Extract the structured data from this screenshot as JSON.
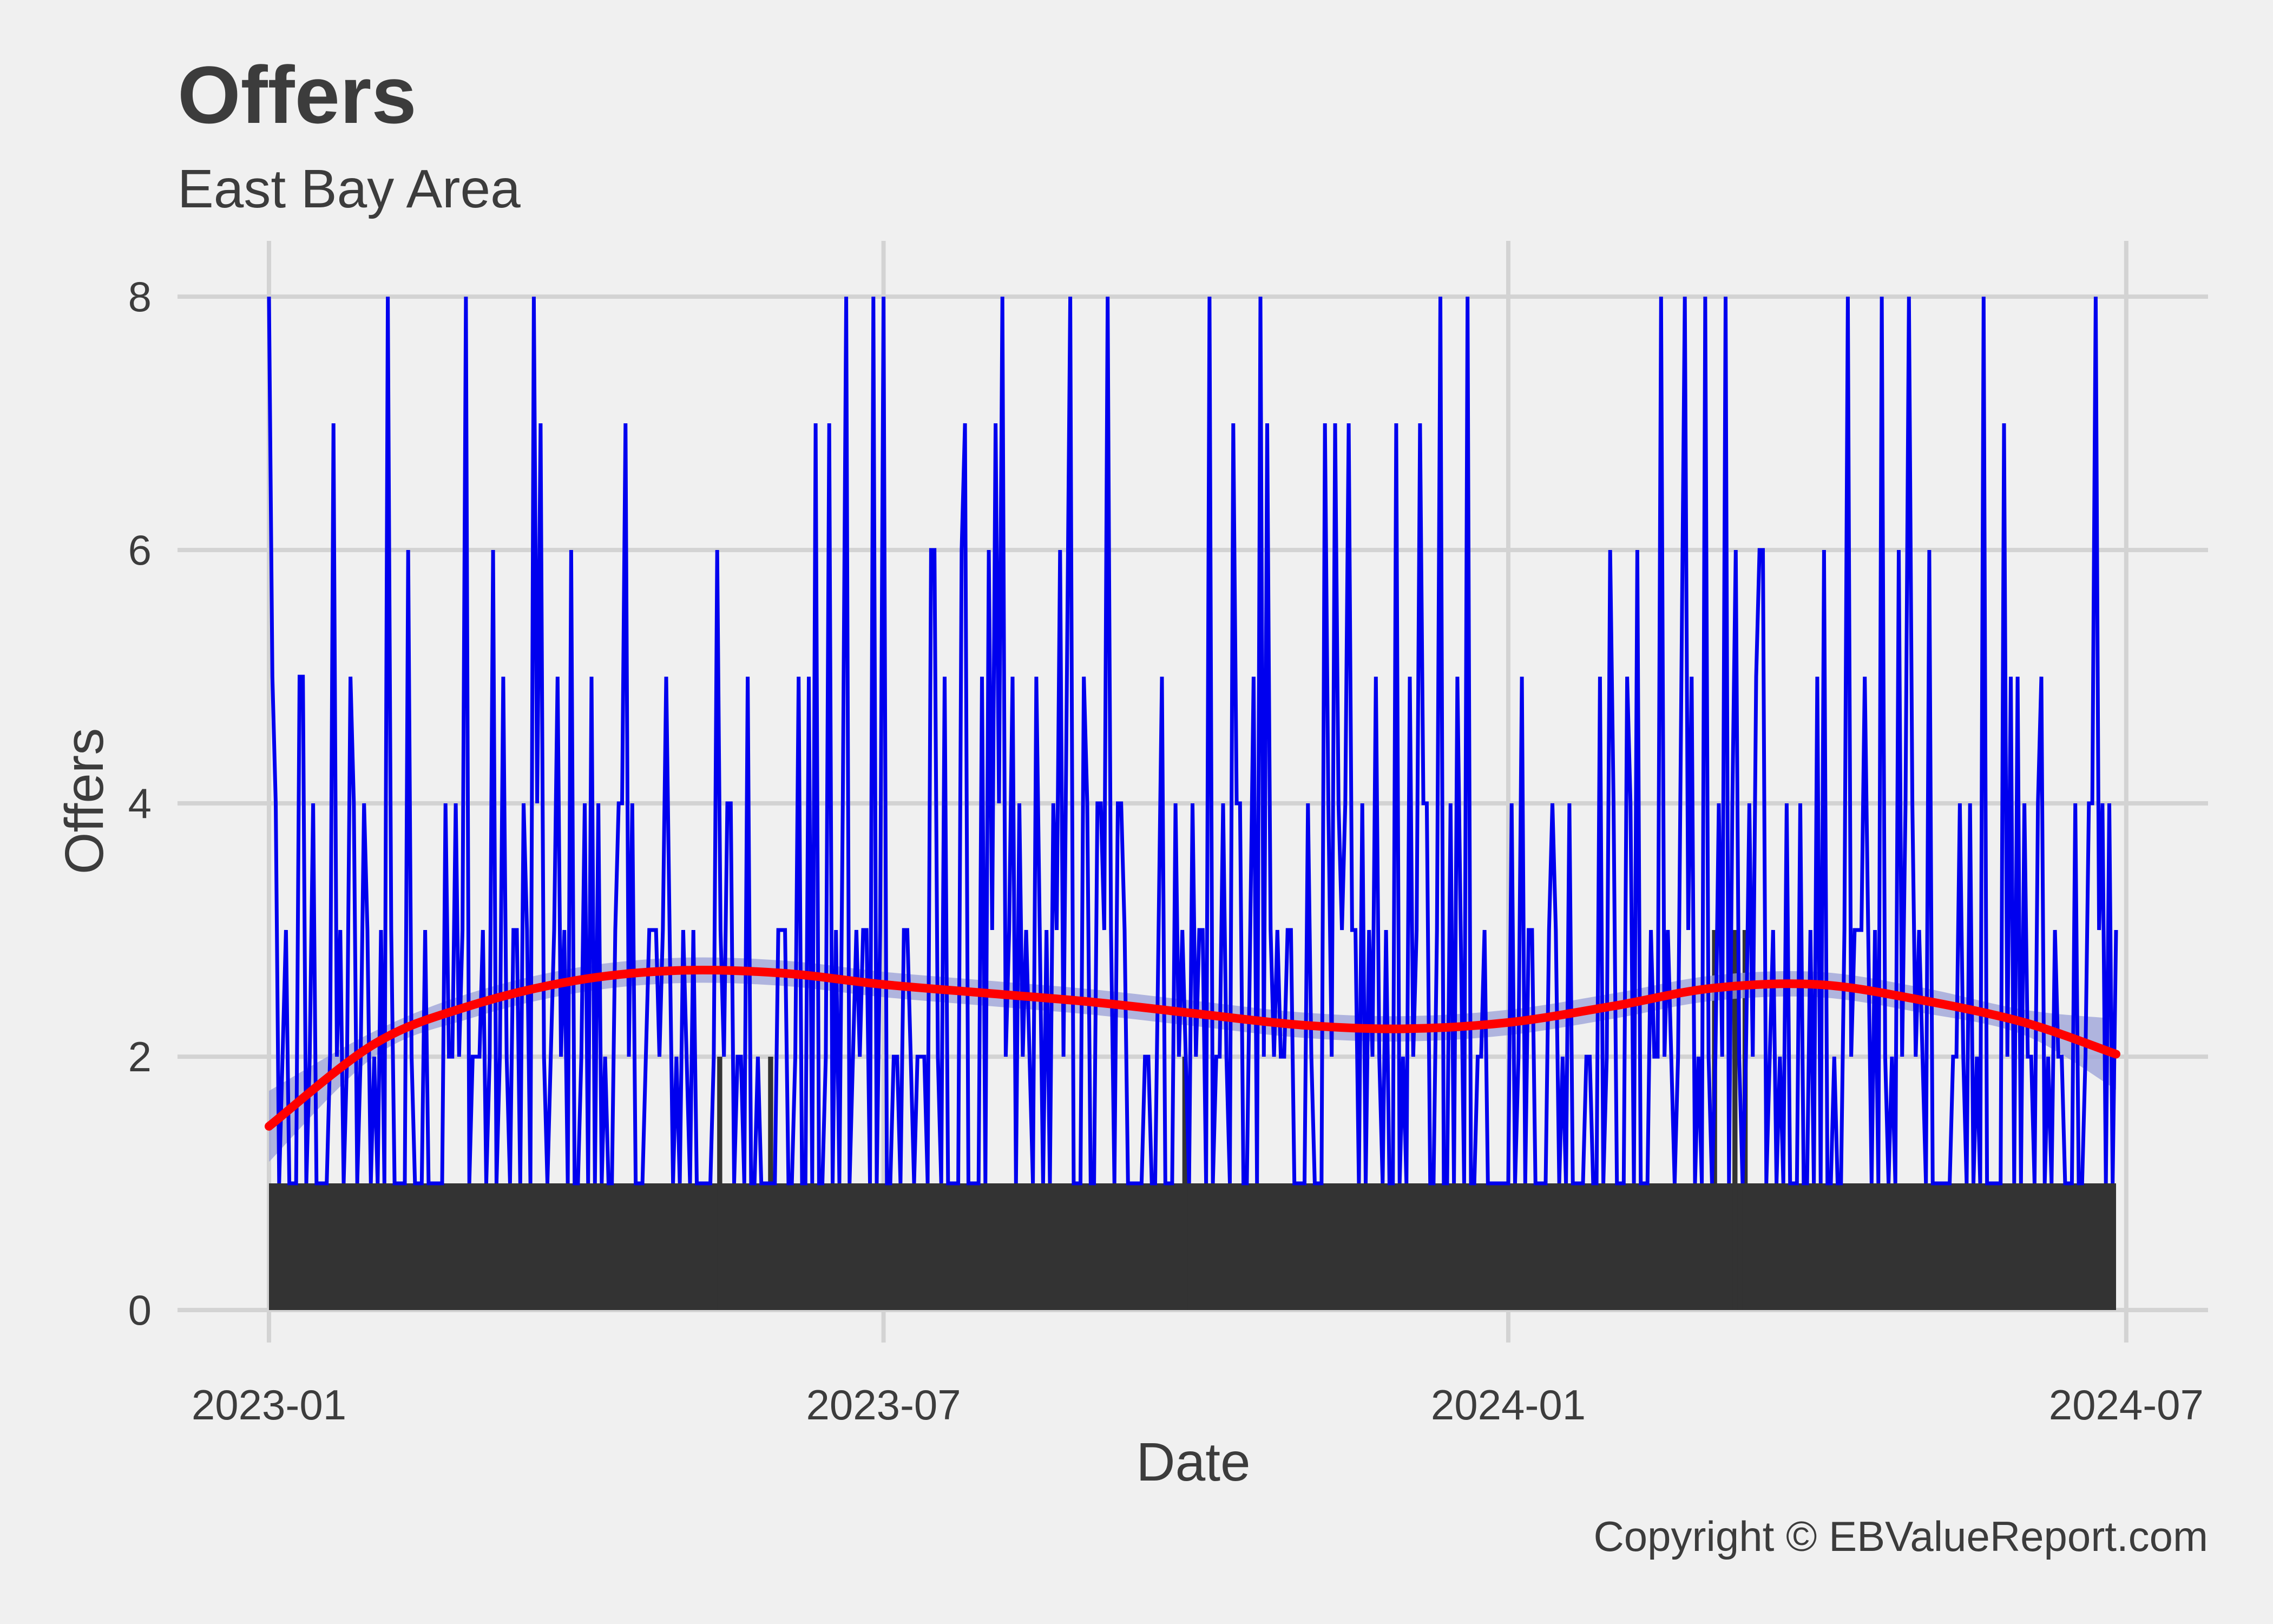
{
  "chart_data": {
    "type": "line",
    "title": "Offers",
    "subtitle": "East Bay  Area",
    "xlabel": "Date",
    "ylabel": "Offers",
    "caption": "Copyright  © EBValueReport.com",
    "x_range": [
      "2023-01-01",
      "2024-06-28"
    ],
    "ylim": [
      -0.3,
      8.4
    ],
    "x_ticks": [
      "2023-01",
      "2023-07",
      "2024-01",
      "2024-07"
    ],
    "y_ticks": [
      0,
      2,
      4,
      6,
      8
    ],
    "grid": true,
    "legend": "none",
    "series": [
      {
        "style": "filled bars (dark grey)",
        "color": "#333333",
        "values_summary": {
          "baseline_value": 1,
          "elevated": [
            {
              "from": "2023-05-10",
              "to": "2023-05-30",
              "value": 2
            },
            {
              "from": "2023-09-15",
              "to": "2023-09-30",
              "value": 2
            },
            {
              "from": "2024-03-01",
              "to": "2024-03-15",
              "value": 3
            }
          ]
        }
      },
      {
        "style": "line (blue)",
        "color": "#0000ee",
        "values_summary": {
          "min": 1,
          "max": 8,
          "peak_dates_value_8": [
            "2023-01-01",
            "2023-02-05",
            "2023-02-28",
            "2023-03-20",
            "2023-06-20",
            "2023-06-28",
            "2023-07-01",
            "2023-08-05",
            "2023-08-25",
            "2023-09-05",
            "2023-10-05",
            "2023-10-20",
            "2023-12-12",
            "2023-12-20",
            "2024-02-15",
            "2024-02-22",
            "2024-02-28",
            "2024-03-05",
            "2024-04-10",
            "2024-04-20",
            "2024-04-28",
            "2024-05-20",
            "2024-06-22"
          ]
        }
      },
      {
        "style": "smoothed trend (red) with confidence band",
        "color": "#ff0000",
        "band_color": "#9aa0d8",
        "x": [
          "2023-01-01",
          "2023-02-01",
          "2023-03-01",
          "2023-04-01",
          "2023-05-01",
          "2023-06-01",
          "2023-07-01",
          "2023-08-01",
          "2023-09-01",
          "2023-10-01",
          "2023-11-01",
          "2023-12-01",
          "2024-01-01",
          "2024-02-01",
          "2024-03-01",
          "2024-04-01",
          "2024-05-01",
          "2024-06-01",
          "2024-06-28"
        ],
        "values": [
          1.45,
          2.1,
          2.4,
          2.6,
          2.68,
          2.66,
          2.57,
          2.5,
          2.43,
          2.34,
          2.25,
          2.22,
          2.27,
          2.4,
          2.54,
          2.57,
          2.45,
          2.27,
          2.02
        ]
      }
    ]
  }
}
